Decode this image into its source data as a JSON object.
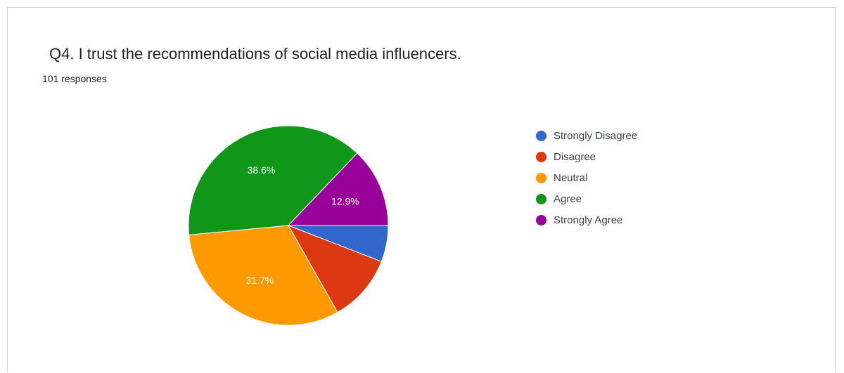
{
  "header": {
    "title": "Q4. I trust the recommendations of social media influencers.",
    "responses": "101 responses"
  },
  "chart_data": {
    "type": "pie",
    "title": "Q4. I trust the recommendations of social media influencers.",
    "total_responses": 101,
    "legend_position": "right",
    "slices": [
      {
        "label": "Strongly Disagree",
        "value": 5.9,
        "color": "#3366cc",
        "data_label": ""
      },
      {
        "label": "Disagree",
        "value": 10.9,
        "color": "#dc3912",
        "data_label": ""
      },
      {
        "label": "Neutral",
        "value": 31.7,
        "color": "#ff9900",
        "data_label": "31.7%"
      },
      {
        "label": "Agree",
        "value": 38.6,
        "color": "#109618",
        "data_label": "38.6%"
      },
      {
        "label": "Strongly Agree",
        "value": 12.9,
        "color": "#990099",
        "data_label": "12.9%"
      }
    ]
  }
}
